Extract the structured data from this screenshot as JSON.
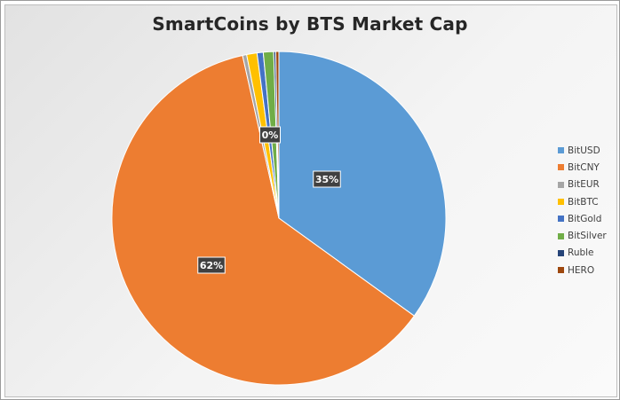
{
  "chart_data": {
    "type": "pie",
    "title": "SmartCoins by BTS Market Cap",
    "slices": [
      {
        "name": "BitUSD",
        "value": 35.0,
        "color": "#5b9bd5",
        "label": "35%"
      },
      {
        "name": "BitCNY",
        "value": 61.6,
        "color": "#ed7d31",
        "label": "62%"
      },
      {
        "name": "BitEUR",
        "value": 0.4,
        "color": "#a5a5a5",
        "label": ""
      },
      {
        "name": "BitBTC",
        "value": 1.0,
        "color": "#ffc000",
        "label": ""
      },
      {
        "name": "BitGold",
        "value": 0.6,
        "color": "#4472c4",
        "label": ""
      },
      {
        "name": "BitSilver",
        "value": 1.0,
        "color": "#70ad47",
        "label": ""
      },
      {
        "name": "Ruble",
        "value": 0.2,
        "color": "#264478",
        "label": ""
      },
      {
        "name": "HERO",
        "value": 0.3,
        "color": "#9e480e",
        "label": ""
      }
    ],
    "extra_labels": [
      "0%"
    ],
    "legend_position": "right"
  }
}
